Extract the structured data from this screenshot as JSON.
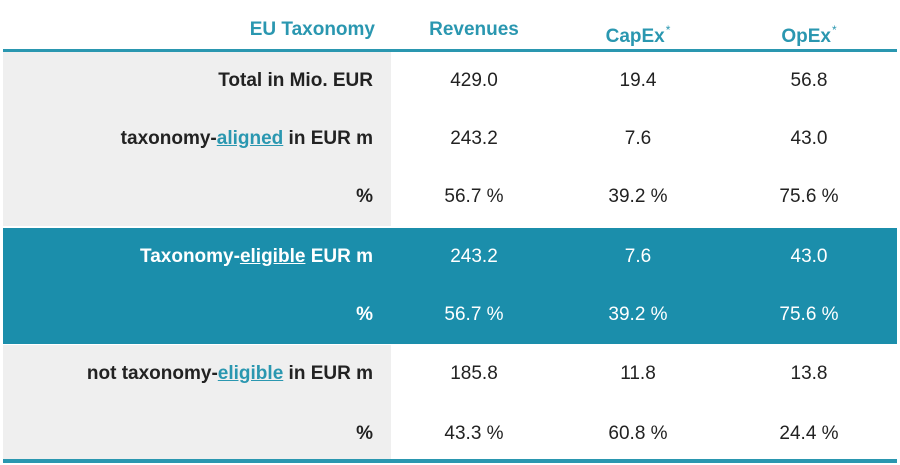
{
  "header": {
    "label": "EU Taxonomy",
    "revenues": "Revenues",
    "capex": "CapEx",
    "capex_mark": "*",
    "opex": "OpEx",
    "opex_mark": "*"
  },
  "rows": {
    "total": {
      "label": "Total in Mio. EUR",
      "revenues": "429.0",
      "capex": "19.4",
      "opex": "56.8"
    },
    "aligned": {
      "label_prefix": "taxonomy-",
      "label_link": "aligned",
      "label_suffix": " in EUR m",
      "revenues": "243.2",
      "capex": "7.6",
      "opex": "43.0"
    },
    "aligned_pct": {
      "label": "%",
      "revenues": "56.7 %",
      "capex": "39.2 %",
      "opex": "75.6 %"
    },
    "eligible": {
      "label_prefix": "Taxonomy-",
      "label_link": "eligible",
      "label_suffix": " EUR m",
      "revenues": "243.2",
      "capex": "7.6",
      "opex": "43.0"
    },
    "eligible_pct": {
      "label": "%",
      "revenues": "56.7 %",
      "capex": "39.2 %",
      "opex": "75.6 %"
    },
    "not_eligible": {
      "label_prefix": "not taxonomy-",
      "label_link": "eligible",
      "label_suffix": " in EUR m",
      "revenues": "185.8",
      "capex": "11.8",
      "opex": "13.8"
    },
    "not_eligible_pct": {
      "label": "%",
      "revenues": "43.3 %",
      "capex": "60.8 %",
      "opex": "24.4 %"
    }
  },
  "colors": {
    "accent": "#2a97b0",
    "highlight": "#1b8eab",
    "label_bg": "#efefef"
  }
}
